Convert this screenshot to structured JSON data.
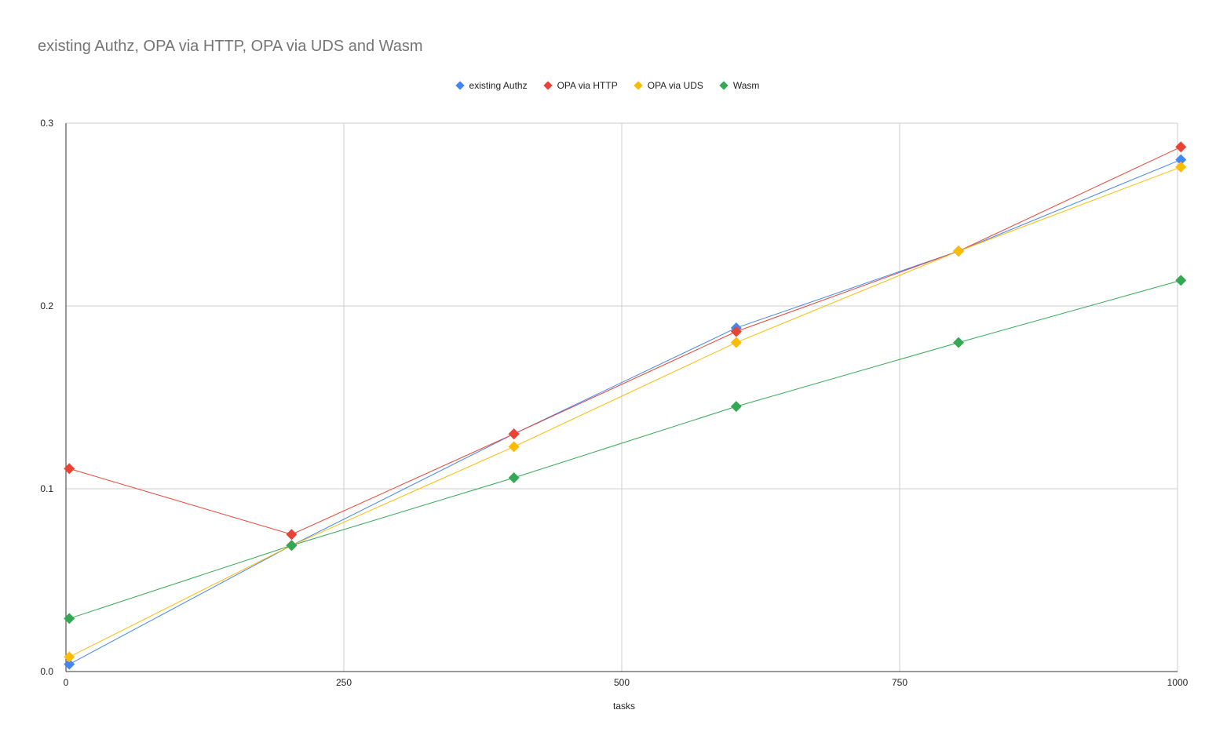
{
  "chart_data": {
    "type": "line",
    "title": "existing Authz, OPA via HTTP, OPA via UDS and Wasm",
    "xlabel": "tasks",
    "ylabel": "",
    "xlim": [
      0,
      1000
    ],
    "ylim": [
      0,
      0.3
    ],
    "x_ticks": [
      "0",
      "250",
      "500",
      "750",
      "1000"
    ],
    "y_ticks": [
      "0.0",
      "0.1",
      "0.2",
      "0.3"
    ],
    "x": [
      3,
      203,
      403,
      603,
      803,
      1003
    ],
    "grid": true,
    "legend_position": "top",
    "series": [
      {
        "name": "existing Authz",
        "color": "#4285f4",
        "values": [
          0.004,
          0.069,
          0.13,
          0.188,
          0.23,
          0.28
        ]
      },
      {
        "name": "OPA via HTTP",
        "color": "#ea4335",
        "values": [
          0.111,
          0.075,
          0.13,
          0.186,
          0.23,
          0.287
        ]
      },
      {
        "name": "OPA via UDS",
        "color": "#fbbc04",
        "values": [
          0.008,
          0.069,
          0.123,
          0.18,
          0.23,
          0.276
        ]
      },
      {
        "name": "Wasm",
        "color": "#34a853",
        "values": [
          0.029,
          0.069,
          0.106,
          0.145,
          0.18,
          0.214
        ]
      }
    ]
  }
}
